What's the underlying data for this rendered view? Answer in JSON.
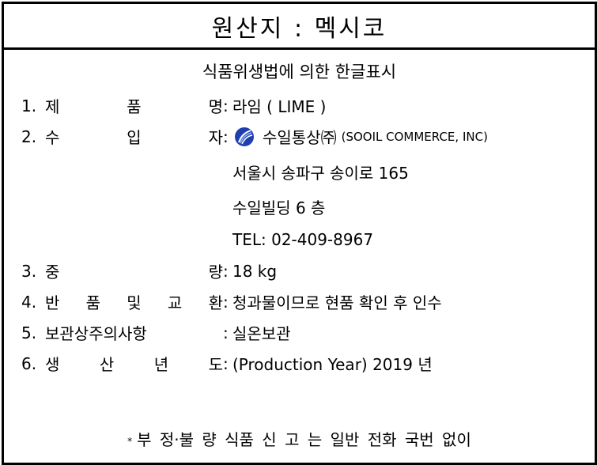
{
  "header": {
    "title": "원산지 : 멕시코"
  },
  "subtitle": "식품위생법에 의한 한글표시",
  "rows": [
    {
      "num": "1.",
      "key_chars": [
        "제",
        "품",
        "명"
      ],
      "value": "라임 ( LIME )"
    },
    {
      "num": "2.",
      "key_chars": [
        "수",
        "입",
        "자"
      ],
      "company_ko": "수일통상㈜",
      "company_en": "(SOOIL COMMERCE, INC)"
    },
    {
      "num": "3.",
      "key_chars": [
        "중",
        "량"
      ],
      "value": "18 kg"
    },
    {
      "num": "4.",
      "key_chars": [
        "반",
        "품",
        "및",
        "교",
        "환"
      ],
      "value": "청과물이므로 현품 확인 후 인수"
    },
    {
      "num": "5.",
      "key_chars": [
        "보관상주의사항"
      ],
      "value": "실온보관"
    },
    {
      "num": "6.",
      "key_chars": [
        "생",
        "산",
        "년",
        "도"
      ],
      "value": "(Production Year) 2019 년"
    }
  ],
  "importer_details": {
    "address": "서울시 송파구 송이로 165",
    "building": "수일빌딩 6 층",
    "tel": "TEL: 02-409-8967"
  },
  "footer": {
    "star": "*",
    "text": "부 정·불 량 식품  신 고 는 일반 전화 국번 없이"
  },
  "colors": {
    "border": "#000000",
    "logo_blue": "#1f3fb0",
    "logo_light": "#7fa8e8"
  },
  "icons": {
    "company_logo": "feather-swirl-icon"
  }
}
